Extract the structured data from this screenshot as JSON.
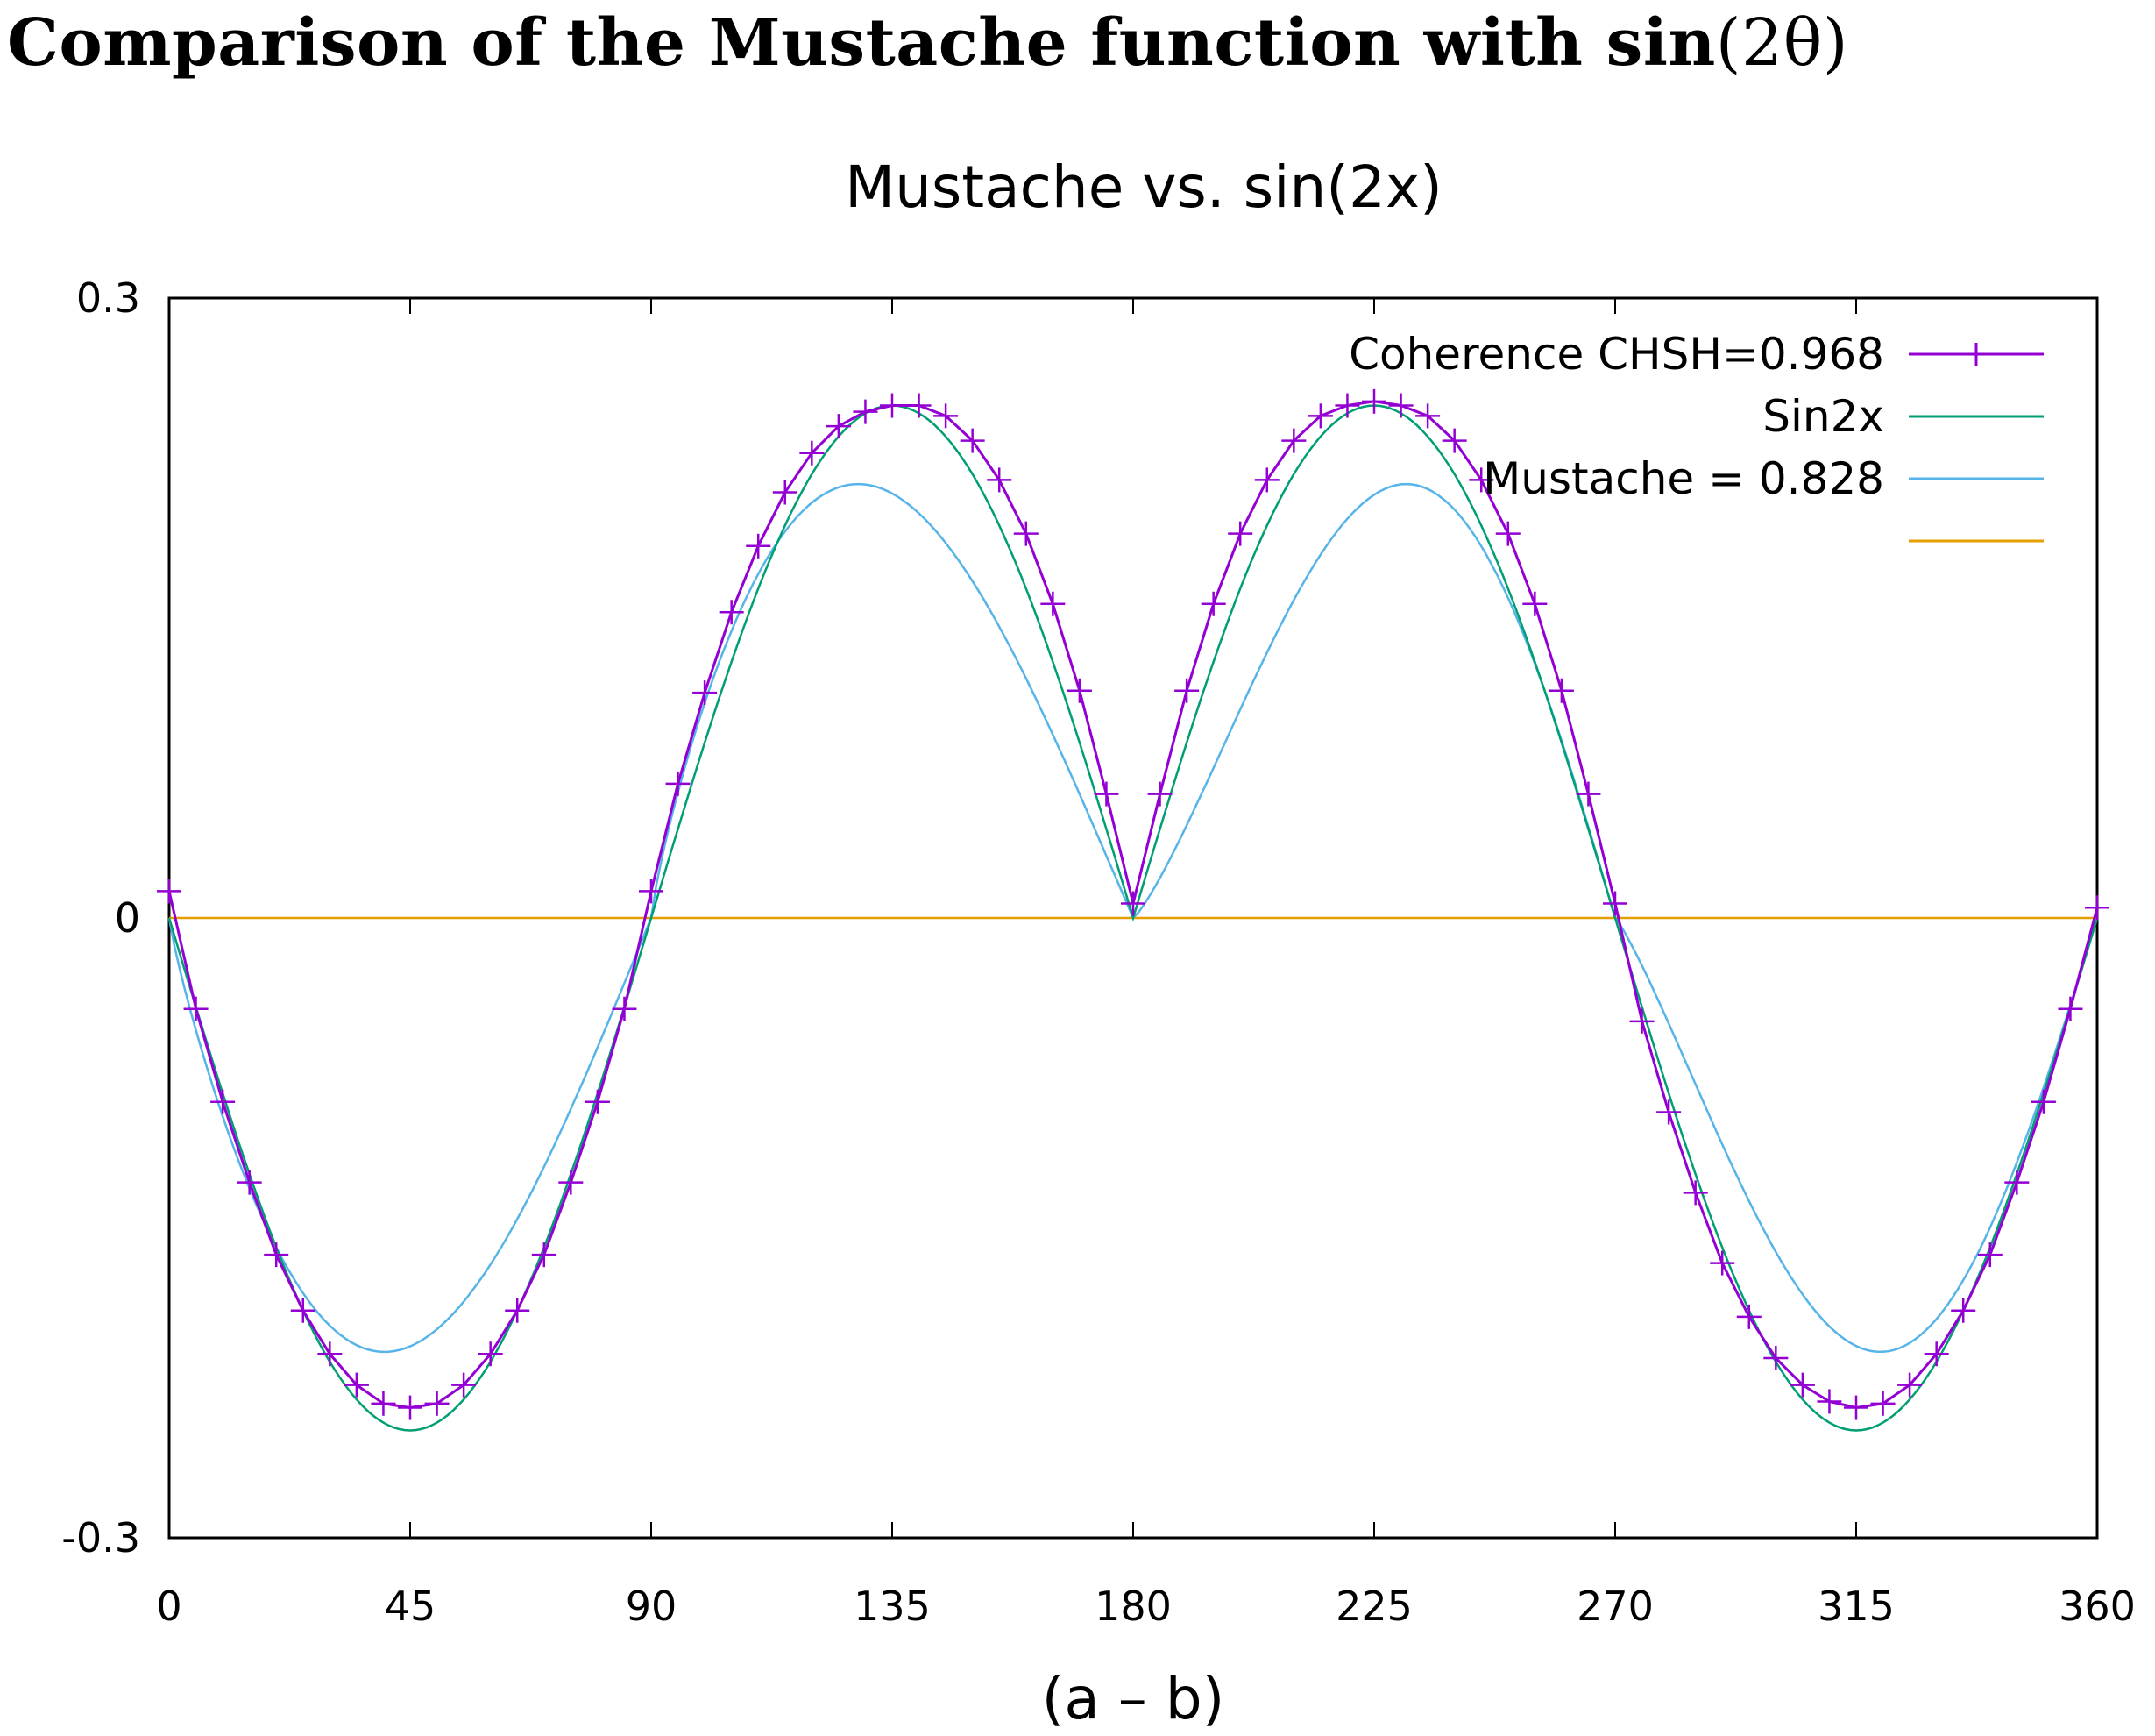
{
  "heading": {
    "text": "Comparison of the Mustache function with sin",
    "math": "(2θ)"
  },
  "chart_data": {
    "type": "line",
    "title": "Mustache vs. sin(2x)",
    "xlabel": "(a – b)",
    "ylabel": "",
    "xlim": [
      0,
      360
    ],
    "ylim": [
      -0.3,
      0.3
    ],
    "x_ticks": [
      0,
      45,
      90,
      135,
      180,
      225,
      270,
      315,
      360
    ],
    "y_ticks": [
      "0.3",
      "0",
      "-0.3"
    ],
    "y_tick_values": [
      0.3,
      0,
      -0.3
    ],
    "legend_position": "top-right",
    "series": [
      {
        "name": "Coherence CHSH=0.968",
        "color": "#9400d3",
        "marker": "plus",
        "x": [
          0,
          5,
          10,
          15,
          20,
          25,
          30,
          35,
          40,
          45,
          50,
          55,
          60,
          65,
          70,
          75,
          80,
          85,
          90,
          95,
          100,
          105,
          110,
          115,
          120,
          125,
          130,
          135,
          140,
          145,
          150,
          155,
          160,
          165,
          170,
          175,
          180,
          185,
          190,
          195,
          200,
          205,
          210,
          215,
          220,
          225,
          230,
          235,
          240,
          245,
          250,
          255,
          260,
          265,
          270,
          275,
          280,
          285,
          290,
          295,
          300,
          305,
          310,
          315,
          320,
          325,
          330,
          335,
          340,
          345,
          350,
          355,
          360
        ],
        "values": [
          0.013,
          -0.044,
          -0.089,
          -0.128,
          -0.163,
          -0.19,
          -0.211,
          -0.226,
          -0.235,
          -0.237,
          -0.235,
          -0.226,
          -0.211,
          -0.19,
          -0.163,
          -0.128,
          -0.089,
          -0.044,
          0.013,
          0.065,
          0.109,
          0.148,
          0.18,
          0.206,
          0.225,
          0.238,
          0.245,
          0.248,
          0.248,
          0.243,
          0.231,
          0.212,
          0.186,
          0.152,
          0.11,
          0.06,
          0.007,
          0.06,
          0.11,
          0.152,
          0.186,
          0.212,
          0.231,
          0.243,
          0.248,
          0.25,
          0.248,
          0.243,
          0.231,
          0.212,
          0.186,
          0.152,
          0.11,
          0.06,
          0.007,
          -0.05,
          -0.094,
          -0.133,
          -0.167,
          -0.193,
          -0.213,
          -0.226,
          -0.234,
          -0.237,
          -0.235,
          -0.226,
          -0.211,
          -0.19,
          -0.163,
          -0.128,
          -0.089,
          -0.044,
          0.005
        ]
      },
      {
        "name": "Sin2x",
        "color": "#009e73",
        "marker": "none",
        "function": "sin2x",
        "amplitude": 0.248
      },
      {
        "name": "Mustache = 0.828",
        "color": "#56b4e9",
        "marker": "none",
        "function": "mustache",
        "amplitude": 0.21
      },
      {
        "name": "",
        "color": "#e69f00",
        "marker": "none",
        "function": "zero",
        "amplitude": 0
      }
    ]
  }
}
